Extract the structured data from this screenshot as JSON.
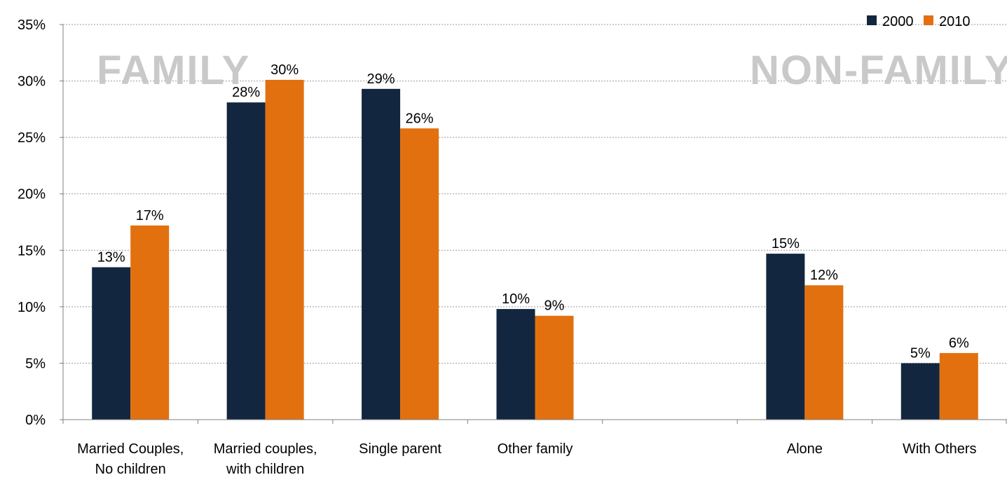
{
  "chart_data": {
    "type": "bar",
    "title": "",
    "xlabel": "",
    "ylabel": "",
    "ylim": [
      0,
      35
    ],
    "ytick_labels": [
      "0%",
      "5%",
      "10%",
      "15%",
      "20%",
      "25%",
      "30%",
      "35%"
    ],
    "grid": "horizontal-dotted",
    "legend_position": "top-right",
    "categories": [
      [
        "Married Couples,",
        "No children"
      ],
      [
        "Married couples,",
        "with children"
      ],
      [
        "Single parent"
      ],
      [
        "Other family"
      ],
      [],
      [
        "Alone"
      ],
      [
        "With Others"
      ]
    ],
    "series": [
      {
        "name": "2000",
        "color": "#13263f",
        "values": [
          13.5,
          28.1,
          29.3,
          9.8,
          null,
          14.7,
          5.0
        ],
        "labels": [
          "13%",
          "28%",
          "29%",
          "10%",
          "",
          "15%",
          "5%"
        ]
      },
      {
        "name": "2010",
        "color": "#e2700f",
        "values": [
          17.2,
          30.1,
          25.8,
          9.2,
          null,
          11.9,
          5.9
        ],
        "labels": [
          "17%",
          "30%",
          "26%",
          "9%",
          "",
          "12%",
          "6%"
        ]
      }
    ],
    "annotations": [
      "FAMILY",
      "NON-FAMILY"
    ]
  }
}
